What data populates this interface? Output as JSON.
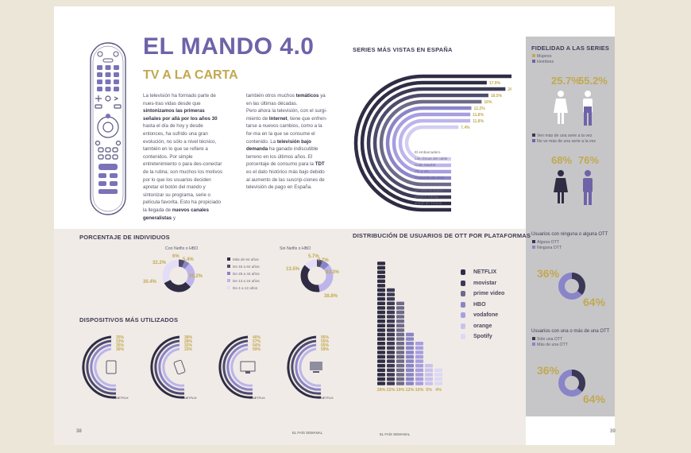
{
  "header": {
    "title": "EL MANDO 4.0",
    "subtitle": "TV A LA CARTA"
  },
  "intro": {
    "col1": {
      "p1_a": "La televisión ha formado parte de nues-tras vidas desde que ",
      "p1_b": "sintonizamos las primeras señales por allá por los años 30",
      "p1_c": " hasta el día de hoy y desde entonces, ha sufrido una gran evolución, no sólo a nivel técnico, también en lo que se refiere a contenidos. Por simple entretenimiento o para des-conectar de la rutina; son muchos los motivos por lo que los usuarios deciden apretar el botón del mando y sintonizar su programa, serie o película favorita. Esto ha propiciado la llegada de ",
      "p1_d": "nuevos canales generalistas",
      "p1_e": " y"
    },
    "col2": {
      "p1_a": "también otros muchos ",
      "p1_b": "temáticos",
      "p1_c": " ya en las últimas décadas.",
      "p2_a": "Pero ahora la televisión, con el surgi-miento de ",
      "p2_b": "Internet",
      "p2_c": ", tiene que enfren-tarse a nuevos cambios, como a la for-ma en la que se consume el contenido. La ",
      "p2_d": "televisión bajo demanda",
      "p2_e": " ha ganado indiscutible terreno en los últimos años. El porcentaje de consumo para la ",
      "p2_f": "TDT",
      "p2_g": " es el dato histórico más bajo debido al aumento de las suscrip-ciones de televisión de pago en España."
    }
  },
  "series": {
    "heading": "SERIES MÁS VISTAS EN ESPAÑA",
    "chart_data": {
      "type": "bar",
      "categories": [
        "El embarcadero",
        "Las chicas del cable",
        "Aude Madrid",
        "Vis a Vis",
        "Anatomía de Grey",
        "Black Mirror",
        "La casa de papel",
        "Modern Family",
        "Juego de Tronos"
      ],
      "values_labels": [
        "27.1%",
        "17.9%",
        "24.8%",
        "18.5%",
        "16%",
        "12.2%",
        "11.8%",
        "11.8%",
        "7.4%"
      ],
      "values": [
        27.1,
        17.9,
        24.8,
        18.5,
        16,
        12.2,
        11.8,
        11.8,
        7.4
      ]
    },
    "colors": [
      "#2f2c44",
      "#2f2c44",
      "#3d3a55",
      "#4f4b6b",
      "#6e6a88",
      "#8a84c8",
      "#a79ee0",
      "#bdb5ea",
      "#d2cdf2"
    ]
  },
  "fidelidad": {
    "heading": "FIDELIDAD A LAS SERIES",
    "legend": [
      "Mujeres",
      "Hombres"
    ],
    "row1": {
      "women": "25.7%",
      "men": "55.2%"
    },
    "legend2": [
      "Ven más de una serie a la vez",
      "No ve más de una serie a la vez"
    ],
    "row2": {
      "women": "68%",
      "men": "76%"
    }
  },
  "individuos": {
    "heading": "PORCENTAJE DE INDIVIDUOS",
    "con_label": "Con Netfix o HBO",
    "sin_label": "Sin Netfix o HBO",
    "con_values": [
      "32.2%",
      "6%",
      "5.4%",
      "30.4%",
      "25.2%"
    ],
    "sin_values": [
      "5.7%",
      "7.7%",
      "33.3%",
      "13.5%",
      "38.8%"
    ],
    "legend": [
      "Más de 64 años",
      "De 45 a 64 años",
      "De 25 a 44 años",
      "De 13 a 24 años",
      "De 4 a 12 años"
    ]
  },
  "dispositivos": {
    "heading": "DISPOSITIVOS MÁS UTILIZADOS",
    "groups": [
      {
        "values": [
          "35%",
          "33%",
          "35%",
          "36%"
        ],
        "labels": [
          "",
          "",
          "",
          "NETFLIX"
        ]
      },
      {
        "values": [
          "38%",
          "28%",
          "32%",
          "33%"
        ],
        "labels": [
          "",
          "",
          "",
          "NETFLIX"
        ]
      },
      {
        "values": [
          "40%",
          "57%",
          "54%",
          "59%"
        ],
        "labels": [
          "",
          "",
          "",
          "NETFLIX"
        ]
      },
      {
        "values": [
          "95%",
          "55%",
          "55%",
          "59%"
        ],
        "labels": [
          "",
          "",
          "",
          "NETFLIX"
        ]
      }
    ]
  },
  "ott": {
    "heading": "DISTRIBUCIÓN DE USUARIOS DE OTT POR PLATAFORMAS",
    "chart_data": {
      "type": "bar",
      "categories": [
        "Netflix",
        "Movistar",
        "Prime Video",
        "HBO",
        "Vodafone",
        "Orange",
        "Spotify"
      ],
      "values_labels": [
        "28%",
        "22%",
        "19%",
        "12%",
        "10%",
        "5%",
        "4%"
      ],
      "values": [
        28,
        22,
        19,
        12,
        10,
        5,
        4
      ]
    },
    "brands": [
      "NETFLIX",
      "movistar",
      "prime video",
      "HBO",
      "vodafone",
      "orange",
      "Spotify"
    ]
  },
  "ott_users": {
    "heading1": "Usuarios con ninguna o alguna OTT",
    "legend1": [
      "Alguna OTT",
      "Ninguna OTT"
    ],
    "v1a": "36%",
    "v1b": "64%",
    "heading2": "Usuarios con una o más de una OTT",
    "legend2": [
      "Sólo una OTT",
      "Más de una OTT"
    ],
    "v2a": "36%",
    "v2b": "64%"
  },
  "footer": {
    "page_left": "38",
    "page_right": "39",
    "pub_left": "EL FAÍS SEMANAL",
    "pub_right": "EL FAÍS SEMANAL"
  }
}
